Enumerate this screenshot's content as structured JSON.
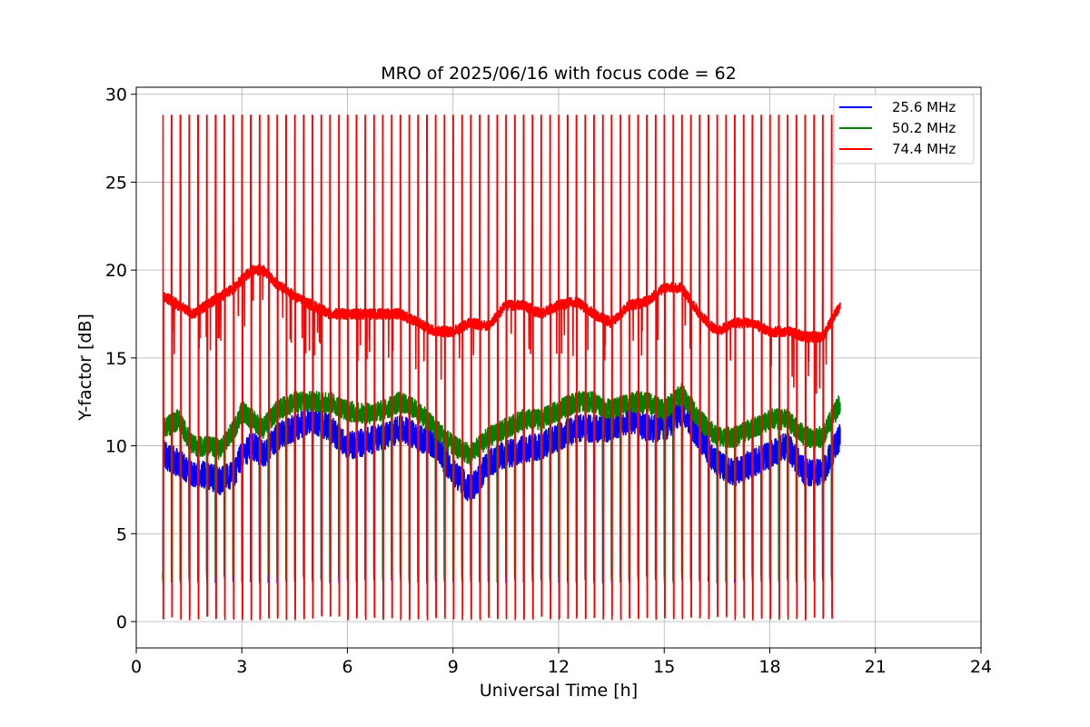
{
  "chart_data": {
    "type": "line",
    "title": "MRO of 2025/06/16 with focus code = 62",
    "xlabel": "Universal Time [h]",
    "ylabel": "Y-factor [dB]",
    "xlim": [
      0,
      24
    ],
    "ylim": [
      -1.5,
      30.4
    ],
    "xticks": [
      0,
      3,
      6,
      9,
      12,
      15,
      18,
      21,
      24
    ],
    "yticks": [
      0,
      5,
      10,
      15,
      20,
      25,
      30
    ],
    "grid": true,
    "legend_position": "top-right",
    "data_start_h": 0.75,
    "data_end_h": 20.0,
    "calibration_period_h": 0.25,
    "calibration_peak_db": 28.8,
    "calibration_low_db": 0.1,
    "series": [
      {
        "name": "25.6 MHz",
        "color": "#0000ff",
        "baseline_profile": {
          "x": [
            0.8,
            1.2,
            1.6,
            2.0,
            2.4,
            2.8,
            3.0,
            3.3,
            3.6,
            4.0,
            4.5,
            5.0,
            5.5,
            6.0,
            6.5,
            7.0,
            7.5,
            8.0,
            8.5,
            9.0,
            9.5,
            10.0,
            10.5,
            11.0,
            11.5,
            12.0,
            12.5,
            13.0,
            13.5,
            14.0,
            14.5,
            15.0,
            15.5,
            16.0,
            16.5,
            17.0,
            17.5,
            18.0,
            18.5,
            19.0,
            19.5,
            20.0
          ],
          "y": [
            9.5,
            9.0,
            8.5,
            8.3,
            8.0,
            8.5,
            9.5,
            10.0,
            9.5,
            10.5,
            11.0,
            11.5,
            11.0,
            10.0,
            10.2,
            10.5,
            11.0,
            10.5,
            10.0,
            8.5,
            7.5,
            9.0,
            9.5,
            9.8,
            10.0,
            10.5,
            11.0,
            11.0,
            11.0,
            11.5,
            11.0,
            11.0,
            12.0,
            10.5,
            9.0,
            8.5,
            9.0,
            9.5,
            10.0,
            8.5,
            8.5,
            10.5
          ]
        }
      },
      {
        "name": "50.2 MHz",
        "color": "#008000",
        "baseline_profile": {
          "x": [
            0.8,
            1.2,
            1.6,
            2.0,
            2.4,
            2.8,
            3.0,
            3.3,
            3.6,
            4.0,
            4.5,
            5.0,
            5.5,
            6.0,
            6.5,
            7.0,
            7.5,
            8.0,
            8.5,
            9.0,
            9.5,
            10.0,
            10.5,
            11.0,
            11.5,
            12.0,
            12.5,
            13.0,
            13.5,
            14.0,
            14.5,
            15.0,
            15.5,
            16.0,
            16.5,
            17.0,
            17.5,
            18.0,
            18.5,
            19.0,
            19.5,
            20.0
          ],
          "y": [
            11.0,
            11.5,
            10.0,
            10.0,
            9.8,
            11.0,
            12.0,
            11.5,
            11.0,
            12.0,
            12.5,
            12.5,
            12.5,
            12.0,
            11.8,
            12.0,
            12.5,
            12.0,
            11.0,
            10.0,
            9.5,
            10.5,
            11.0,
            11.5,
            11.5,
            12.0,
            12.5,
            12.5,
            12.0,
            12.5,
            12.5,
            12.0,
            13.0,
            11.5,
            10.5,
            10.5,
            11.0,
            11.5,
            11.5,
            10.5,
            10.5,
            12.5
          ]
        }
      },
      {
        "name": "74.4 MHz",
        "color": "#ff0000",
        "baseline_profile": {
          "x": [
            0.8,
            1.2,
            1.6,
            2.0,
            2.4,
            2.8,
            3.0,
            3.3,
            3.6,
            4.0,
            4.5,
            5.0,
            5.5,
            6.0,
            6.5,
            7.0,
            7.5,
            8.0,
            8.5,
            9.0,
            9.5,
            10.0,
            10.5,
            11.0,
            11.5,
            12.0,
            12.5,
            13.0,
            13.5,
            14.0,
            14.5,
            15.0,
            15.5,
            16.0,
            16.5,
            17.0,
            17.5,
            18.0,
            18.5,
            19.0,
            19.5,
            20.0
          ],
          "y": [
            18.5,
            18.0,
            17.5,
            18.0,
            18.5,
            19.0,
            19.5,
            20.0,
            20.0,
            19.2,
            18.5,
            18.0,
            17.5,
            17.5,
            17.5,
            17.5,
            17.5,
            17.0,
            16.5,
            16.5,
            17.0,
            16.8,
            18.0,
            18.0,
            17.5,
            18.0,
            18.2,
            17.5,
            17.0,
            18.0,
            18.2,
            19.0,
            19.0,
            17.5,
            16.5,
            17.0,
            17.0,
            16.5,
            16.5,
            16.2,
            16.2,
            18.0
          ]
        }
      }
    ]
  }
}
